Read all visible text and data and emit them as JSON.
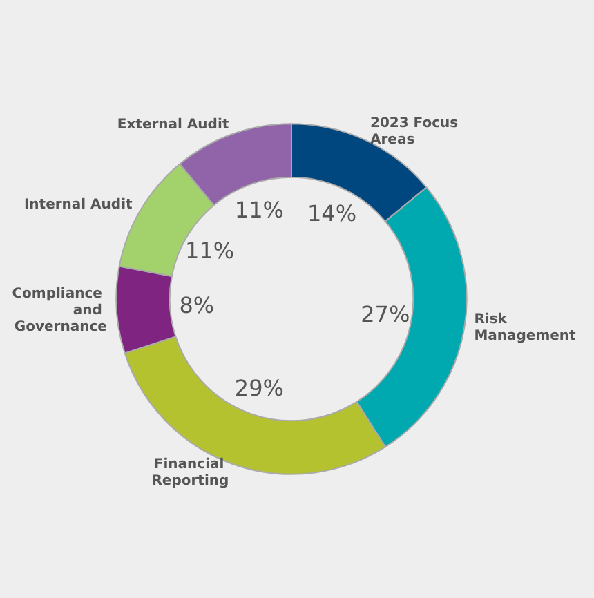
{
  "chart_data": {
    "type": "donut",
    "categories": [
      "2023 Focus Areas",
      "Risk Management",
      "Financial Reporting",
      "Compliance and Governance",
      "Internal Audit",
      "External Audit"
    ],
    "values": [
      14,
      27,
      29,
      8,
      11,
      11
    ],
    "value_labels": [
      "14%",
      "27%",
      "29%",
      "8%",
      "11%",
      "11%"
    ],
    "colors": [
      "#00467f",
      "#00a9b0",
      "#b3c22e",
      "#7f2480",
      "#a3d16b",
      "#9163a8"
    ],
    "legend": false
  }
}
